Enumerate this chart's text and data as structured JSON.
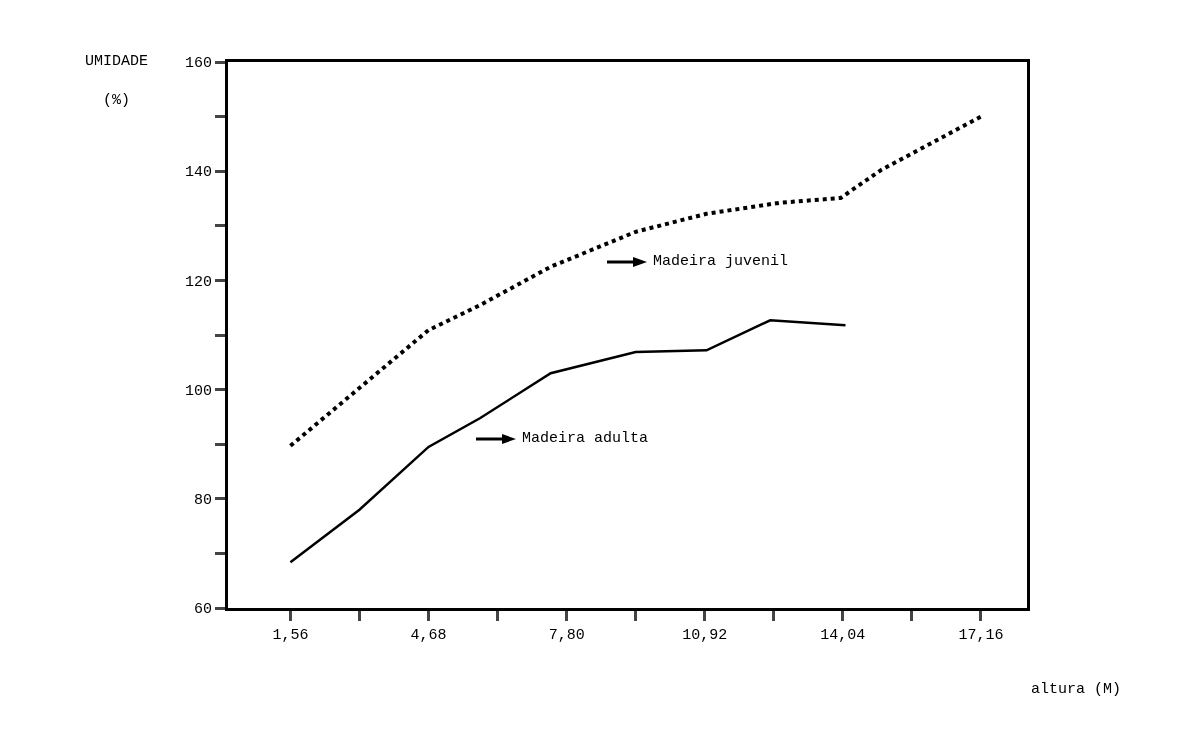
{
  "chart_data": {
    "type": "line",
    "ylabel": "UMIDADE\n(%)",
    "xlabel": "altura (M)",
    "series": [
      {
        "color": "#000000",
        "line_style": "dotted",
        "x": [
          1.56,
          4.68,
          5.85,
          7.44,
          9.36,
          10.96,
          12.6,
          13.99,
          14.9,
          17.16
        ],
        "values": [
          89.7,
          110.9,
          115.5,
          122.5,
          128.9,
          132.2,
          134.2,
          135.1,
          140.2,
          150
        ]
      },
      {
        "color": "#000000",
        "line_style": "solid",
        "x": [
          1.56,
          3.12,
          4.68,
          5.85,
          7.44,
          9.36,
          10.96,
          12.4,
          14.1
        ],
        "values": [
          68.4,
          78,
          89.5,
          94.8,
          103,
          106.9,
          107.2,
          112.7,
          111.8
        ]
      }
    ],
    "annotations": [
      "Madeira juvenil",
      "Madeira adulta"
    ],
    "xlim": [
      0.15,
      18.2
    ],
    "xticks": [
      {
        "value": 1.56,
        "label": "1,56"
      },
      {
        "value": 3.12,
        "label": null
      },
      {
        "value": 4.68,
        "label": "4,68"
      },
      {
        "value": 6.24,
        "label": null
      },
      {
        "value": 7.8,
        "label": "7,80"
      },
      {
        "value": 9.36,
        "label": null
      },
      {
        "value": 10.92,
        "label": "10,92"
      },
      {
        "value": 12.48,
        "label": null
      },
      {
        "value": 14.04,
        "label": "14,04"
      },
      {
        "value": 15.6,
        "label": null
      },
      {
        "value": 17.16,
        "label": "17,16"
      }
    ],
    "ylim": [
      60,
      160
    ],
    "yticks": [
      60,
      {
        "value": 70,
        "label": null
      },
      80,
      {
        "value": 90,
        "label": null
      },
      100,
      {
        "value": 110,
        "label": null
      },
      120,
      {
        "value": 130,
        "label": null
      },
      140,
      {
        "value": 150,
        "label": null
      },
      160
    ],
    "grid": false,
    "marker": "none"
  }
}
